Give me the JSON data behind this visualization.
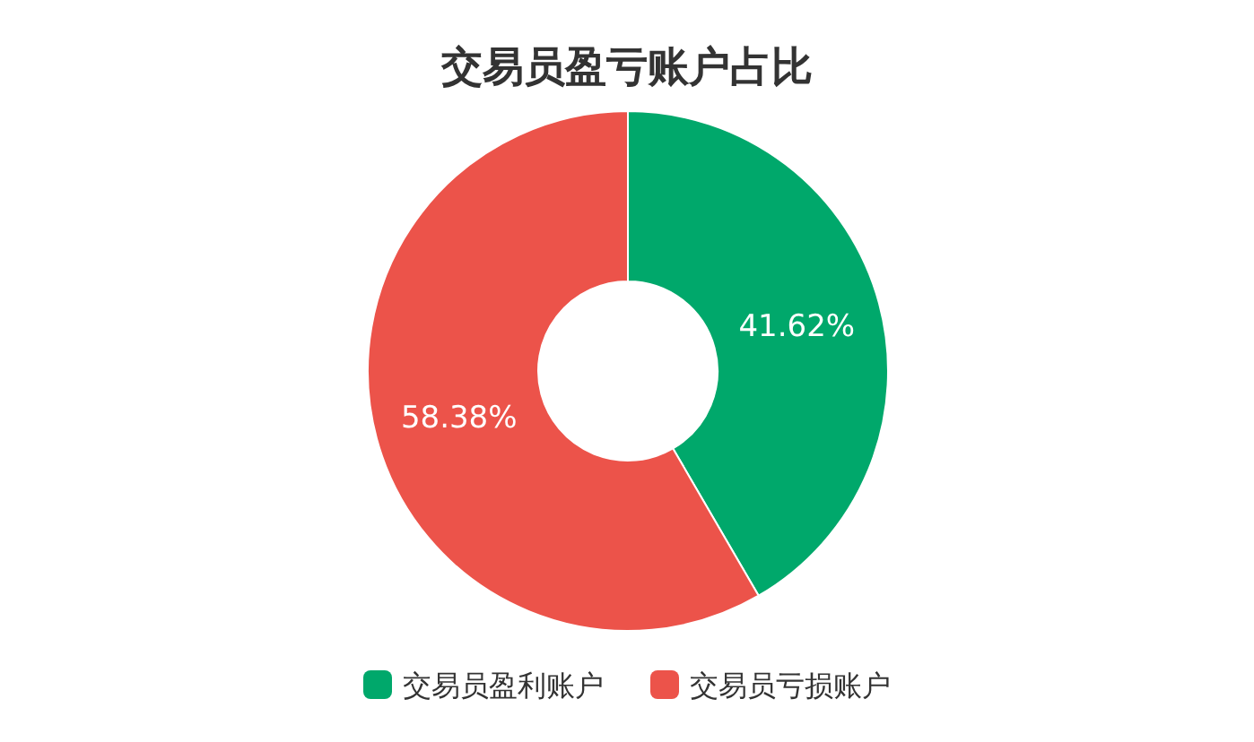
{
  "chart_data": {
    "type": "donut",
    "title": "交易员盈亏账户占比",
    "categories": [
      "交易员盈利账户",
      "交易员亏损账户"
    ],
    "values": [
      41.62,
      58.38
    ],
    "colors": [
      "#00a86b",
      "#ec534a"
    ],
    "value_labels": [
      "41.62%",
      "58.38%"
    ],
    "legend": "bottom"
  }
}
